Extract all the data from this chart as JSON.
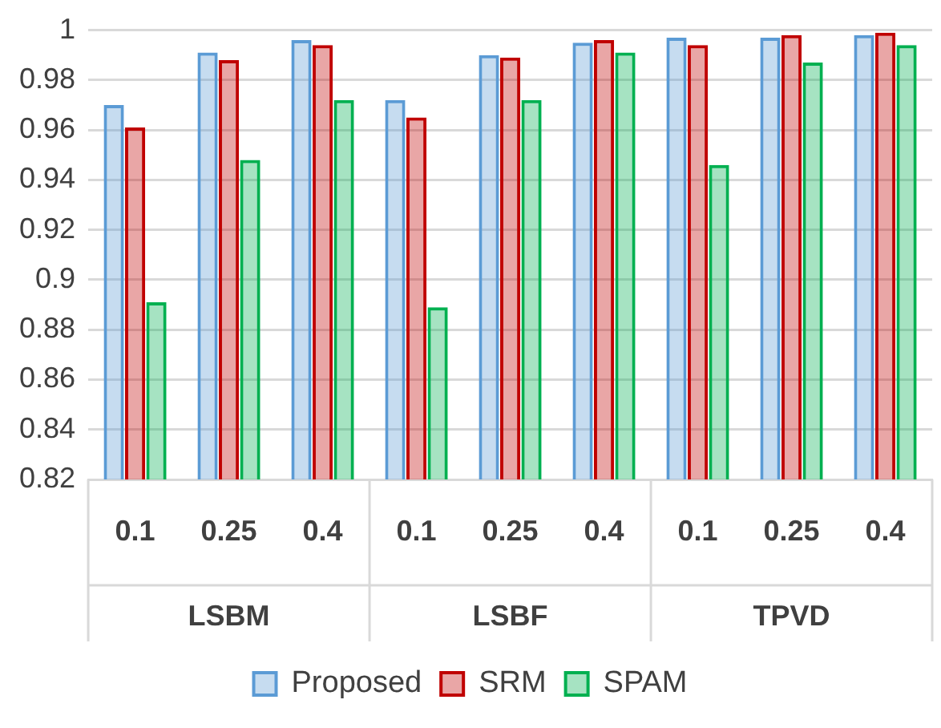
{
  "chart_data": {
    "type": "bar",
    "categories": [
      "0.1",
      "0.25",
      "0.4",
      "0.1",
      "0.25",
      "0.4",
      "0.1",
      "0.25",
      "0.4"
    ],
    "annotations": [
      "LSBM",
      "LSBF",
      "TPVD"
    ],
    "series": [
      {
        "name": "Proposed",
        "color": "#5b9bd5",
        "values": [
          0.97,
          0.991,
          0.996,
          0.972,
          0.99,
          0.995,
          0.997,
          0.997,
          0.998
        ]
      },
      {
        "name": "SRM",
        "color": "#c00000",
        "values": [
          0.961,
          0.988,
          0.994,
          0.965,
          0.989,
          0.996,
          0.994,
          0.998,
          0.999
        ]
      },
      {
        "name": "SPAM",
        "color": "#00b050",
        "values": [
          0.891,
          0.948,
          0.972,
          0.889,
          0.972,
          0.991,
          0.946,
          0.987,
          0.994
        ]
      }
    ],
    "ylim": [
      0.82,
      1
    ],
    "yticks": [
      0.82,
      0.84,
      0.86,
      0.88,
      0.9,
      0.92,
      0.94,
      0.96,
      0.98,
      1
    ],
    "grid": "y",
    "legend": "bottom"
  }
}
